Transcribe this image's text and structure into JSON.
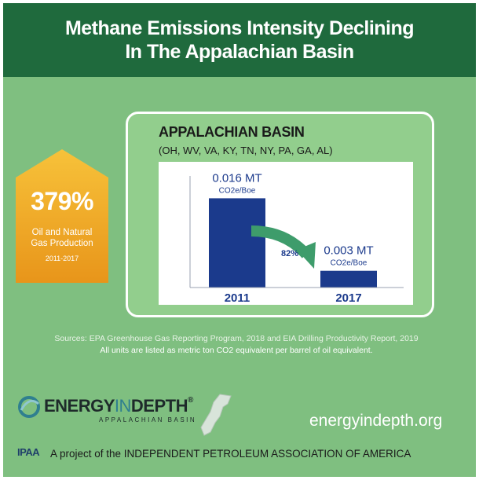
{
  "header": {
    "line1": "Methane Emissions Intensity Declining",
    "line2": "In The Appalachian Basin"
  },
  "badge": {
    "value": "379%",
    "line1": "Oil and Natural",
    "line2": "Gas Production",
    "years": "2011-2017"
  },
  "panel": {
    "title": "APPALACHIAN BASIN",
    "subtitle": "(OH, WV, VA, KY, TN, NY, PA, GA, AL)"
  },
  "chart_data": {
    "type": "bar",
    "categories": [
      "2011",
      "2017"
    ],
    "values": [
      0.016,
      0.003
    ],
    "value_labels": [
      "0.016 MT",
      "0.003 MT"
    ],
    "unit_label": "CO2e/Boe",
    "annotation": "82%",
    "ylim": [
      0,
      0.02
    ],
    "grid": false,
    "colors": {
      "bar": "#1b3a8c",
      "arrow": "#3e9c6b"
    }
  },
  "footer": {
    "sources": "Sources: EPA Greenhouse Gas Reporting Program, 2018 and EIA Drilling Productivity Report, 2019",
    "units": "All units are listed as metric ton CO2 equivalent per barrel of oil equivalent.",
    "logo_word_a": "ENERGY",
    "logo_word_b": "IN",
    "logo_word_c": "DEPTH",
    "logo_sub": "APPALACHIAN BASIN",
    "url": "energyindepth.org",
    "ipaa": "IPAA",
    "project": "A project of the INDEPENDENT PETROLEUM ASSOCIATION OF AMERICA"
  },
  "colors": {
    "background": "#7fbf80",
    "header": "#1f6a3d",
    "panel": "#92ce8d",
    "badge": "#f0a020"
  }
}
